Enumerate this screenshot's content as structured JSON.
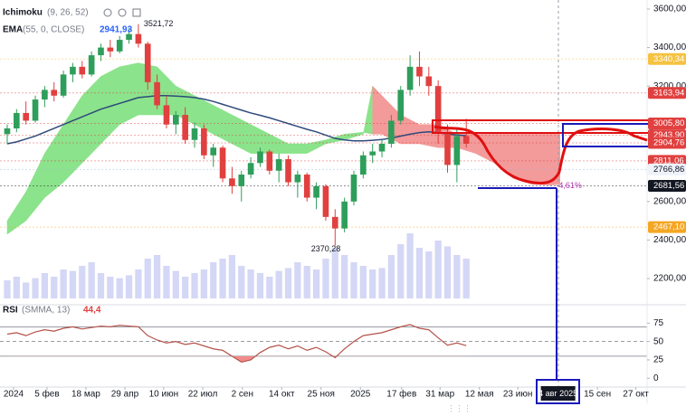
{
  "chart_data": {
    "type": "candlestick",
    "indicators": [
      {
        "name": "Ichimoku",
        "params": "(9, 26, 52)"
      },
      {
        "name": "EMA",
        "params": "(55, 0, CLOSE)",
        "value_label": "2941,93"
      }
    ],
    "rsi_legend": {
      "name": "RSI",
      "params": "(SMMA, 13)",
      "value_label": "44,4"
    },
    "xlim": [
      -0.77,
      68.3
    ],
    "xticks": [
      {
        "value": 0.68,
        "label": "2024"
      },
      {
        "value": 4.25,
        "label": "5 фев"
      },
      {
        "value": 8.4,
        "label": "18 мар"
      },
      {
        "value": 12.56,
        "label": "29 апр"
      },
      {
        "value": 16.7,
        "label": "10 июн"
      },
      {
        "value": 20.87,
        "label": "22 июл"
      },
      {
        "value": 25.1,
        "label": "2 сен"
      },
      {
        "value": 29.3,
        "label": "14 окт"
      },
      {
        "value": 33.5,
        "label": "25 ноя"
      },
      {
        "value": 37.7,
        "label": "2025"
      },
      {
        "value": 42.1,
        "label": "17 фев"
      },
      {
        "value": 46.2,
        "label": "31 мар"
      },
      {
        "value": 50.4,
        "label": "12 мая"
      },
      {
        "value": 54.5,
        "label": "23 июн"
      },
      {
        "value": 63,
        "label": "15 сен"
      },
      {
        "value": 67.1,
        "label": "27 окт"
      }
    ],
    "crosshair": {
      "x": 58.8,
      "label": "4 авг 2025"
    },
    "ylim": [
      2073,
      3647
    ],
    "yticks": [
      {
        "value": 3600,
        "label": "3600,00"
      },
      {
        "value": 3400,
        "label": "3400,00"
      },
      {
        "value": 3200,
        "label": "3200,00"
      },
      {
        "value": 2600,
        "label": "2600,00"
      },
      {
        "value": 2400,
        "label": "2400,00"
      },
      {
        "value": 2200,
        "label": "2200,00"
      }
    ],
    "up_color": "#2e9e5b",
    "down_color": "#e0403f",
    "candles": [
      [
        2950,
        3000,
        2900,
        2980
      ],
      [
        2980,
        3080,
        2960,
        3060
      ],
      [
        3060,
        3120,
        3000,
        3020
      ],
      [
        3020,
        3150,
        3010,
        3130
      ],
      [
        3130,
        3200,
        3090,
        3180
      ],
      [
        3180,
        3220,
        3120,
        3150
      ],
      [
        3150,
        3280,
        3140,
        3260
      ],
      [
        3260,
        3320,
        3220,
        3300
      ],
      [
        3300,
        3330,
        3240,
        3260
      ],
      [
        3260,
        3380,
        3250,
        3360
      ],
      [
        3360,
        3420,
        3330,
        3400
      ],
      [
        3400,
        3440,
        3350,
        3380
      ],
      [
        3380,
        3460,
        3370,
        3440
      ],
      [
        3440,
        3500,
        3420,
        3470
      ],
      [
        3470,
        3521.72,
        3400,
        3420
      ],
      [
        3420,
        3430,
        3180,
        3220
      ],
      [
        3220,
        3260,
        3080,
        3100
      ],
      [
        3100,
        3150,
        2980,
        3000
      ],
      [
        3000,
        3070,
        2950,
        3050
      ],
      [
        3050,
        3090,
        2900,
        2920
      ],
      [
        2920,
        3010,
        2880,
        2980
      ],
      [
        2980,
        3000,
        2820,
        2840
      ],
      [
        2840,
        2900,
        2780,
        2880
      ],
      [
        2880,
        2890,
        2700,
        2720
      ],
      [
        2720,
        2780,
        2640,
        2680
      ],
      [
        2680,
        2760,
        2600,
        2740
      ],
      [
        2740,
        2830,
        2720,
        2800
      ],
      [
        2800,
        2880,
        2780,
        2860
      ],
      [
        2860,
        2870,
        2740,
        2760
      ],
      [
        2760,
        2850,
        2700,
        2820
      ],
      [
        2820,
        2840,
        2680,
        2700
      ],
      [
        2700,
        2760,
        2620,
        2740
      ],
      [
        2740,
        2750,
        2600,
        2620
      ],
      [
        2620,
        2700,
        2560,
        2680
      ],
      [
        2680,
        2690,
        2500,
        2520
      ],
      [
        2520,
        2560,
        2370.28,
        2460
      ],
      [
        2460,
        2620,
        2440,
        2600
      ],
      [
        2600,
        2760,
        2580,
        2740
      ],
      [
        2740,
        2860,
        2720,
        2840
      ],
      [
        2840,
        2900,
        2800,
        2860
      ],
      [
        2860,
        2920,
        2830,
        2900
      ],
      [
        2900,
        3050,
        2880,
        3020
      ],
      [
        3020,
        3200,
        3000,
        3180
      ],
      [
        3180,
        3360,
        3150,
        3300
      ],
      [
        3300,
        3380,
        3200,
        3250
      ],
      [
        3250,
        3300,
        3150,
        3200
      ],
      [
        3200,
        3230,
        2900,
        2960
      ],
      [
        2960,
        3000,
        2750,
        2790
      ],
      [
        2790,
        2980,
        2700,
        2940
      ],
      [
        2940,
        3030,
        2880,
        2900
      ]
    ],
    "ema": {
      "color": "#2e4a7a",
      "values": [
        2900,
        2910,
        2925,
        2940,
        2960,
        2980,
        3000,
        3020,
        3040,
        3060,
        3080,
        3095,
        3110,
        3125,
        3140,
        3145,
        3150,
        3150,
        3148,
        3145,
        3140,
        3132,
        3120,
        3105,
        3090,
        3075,
        3060,
        3048,
        3035,
        3020,
        3005,
        2990,
        2975,
        2962,
        2945,
        2928,
        2920,
        2915,
        2915,
        2918,
        2922,
        2930,
        2940,
        2950,
        2958,
        2962,
        2958,
        2950,
        2946,
        2941.93
      ]
    },
    "cloud": {
      "up_color": "#8be38b",
      "down_color": "#f39a9a",
      "span_a": [
        2500,
        2575,
        2650,
        2750,
        2850,
        2925,
        3000,
        3075,
        3150,
        3200,
        3250,
        3275,
        3300,
        3310,
        3320,
        3310,
        3300,
        3250,
        3200,
        3175,
        3150,
        3125,
        3100,
        3075,
        3050,
        3025,
        3000,
        2975,
        2950,
        2925,
        2900,
        2900,
        2900,
        2910,
        2920,
        2935,
        2950,
        2955,
        2960,
        2950,
        2950,
        2925,
        2900,
        2900,
        2900,
        2890,
        2880,
        2880,
        2880,
        2865,
        2850,
        2825,
        2800,
        2760,
        2720,
        2705,
        2690,
        2688,
        2685,
        2690
      ],
      "span_b": [
        2430,
        2465,
        2500,
        2560,
        2620,
        2660,
        2700,
        2750,
        2800,
        2850,
        2900,
        2950,
        3000,
        3025,
        3050,
        3050,
        3050,
        3050,
        3050,
        3025,
        3000,
        2975,
        2950,
        2925,
        2900,
        2875,
        2850,
        2850,
        2850,
        2850,
        2850,
        2850,
        2850,
        2875,
        2900,
        2910,
        2920,
        2935,
        2950,
        3200,
        3150,
        3100,
        3050,
        3025,
        3000,
        3000,
        3000,
        2975,
        2950,
        2950,
        2950,
        2950,
        2950,
        2950,
        2950,
        2950,
        2950,
        2950,
        2950,
        2950
      ]
    },
    "volume": {
      "color": "#c9cdf2",
      "ylim": [
        0,
        400
      ],
      "values": [
        25,
        30,
        22,
        28,
        35,
        30,
        40,
        38,
        45,
        50,
        35,
        30,
        28,
        32,
        40,
        55,
        60,
        45,
        38,
        30,
        35,
        40,
        50,
        55,
        60,
        45,
        40,
        35,
        30,
        38,
        42,
        50,
        45,
        40,
        55,
        70,
        60,
        50,
        45,
        40,
        42,
        60,
        75,
        90,
        70,
        65,
        80,
        72,
        60,
        55
      ]
    },
    "rsi": {
      "color": "#b5524a",
      "fill_color": "#f28b8b",
      "ylim": [
        -12,
        100
      ],
      "yticks": [
        75,
        50,
        25,
        0
      ],
      "levels": [
        70,
        50,
        30
      ],
      "values": [
        60,
        62,
        58,
        63,
        66,
        64,
        68,
        70,
        67,
        69,
        71,
        70,
        72,
        71,
        70,
        58,
        52,
        48,
        50,
        46,
        48,
        44,
        40,
        38,
        30,
        22,
        25,
        35,
        42,
        45,
        40,
        44,
        38,
        42,
        36,
        28,
        40,
        50,
        58,
        60,
        62,
        66,
        70,
        73,
        68,
        66,
        55,
        45,
        48,
        44.4
      ]
    },
    "price_tags": [
      {
        "value": 3340.34,
        "label": "3340,34",
        "color": "#f5c242",
        "text_color": "#ffffff"
      },
      {
        "value": 3163.94,
        "label": "3163,94",
        "color": "#e0403f",
        "text_color": "#ffffff"
      },
      {
        "value": 3005.8,
        "label": "3005,80",
        "color": "#e0403f",
        "text_color": "#ffffff"
      },
      {
        "value": 2943.9,
        "label": "2943,90",
        "color": "#e0403f",
        "text_color": "#ffffff"
      },
      {
        "value": 2904.76,
        "label": "2904,76",
        "color": "#e0403f",
        "text_color": "#ffffff"
      },
      {
        "value": 2811.06,
        "label": "2811,06",
        "color": "#e0403f",
        "text_color": "#ffffff"
      },
      {
        "value": 2766.86,
        "label": "2766,86",
        "color": "#eef2fb",
        "text_color": "#131722"
      },
      {
        "value": 2681.56,
        "label": "2681,56",
        "color": "#131722",
        "text_color": "#ffffff"
      },
      {
        "value": 2467.1,
        "label": "2467,10",
        "color": "#f5a623",
        "text_color": "#ffffff"
      }
    ],
    "annotations": [
      {
        "text": "3521,72",
        "x": 14,
        "y": 3521.72
      },
      {
        "text": "2370,28",
        "x": 35,
        "y": 2370.28
      },
      {
        "text": "-4,61%",
        "x": 58,
        "y": 2681.56
      }
    ]
  }
}
